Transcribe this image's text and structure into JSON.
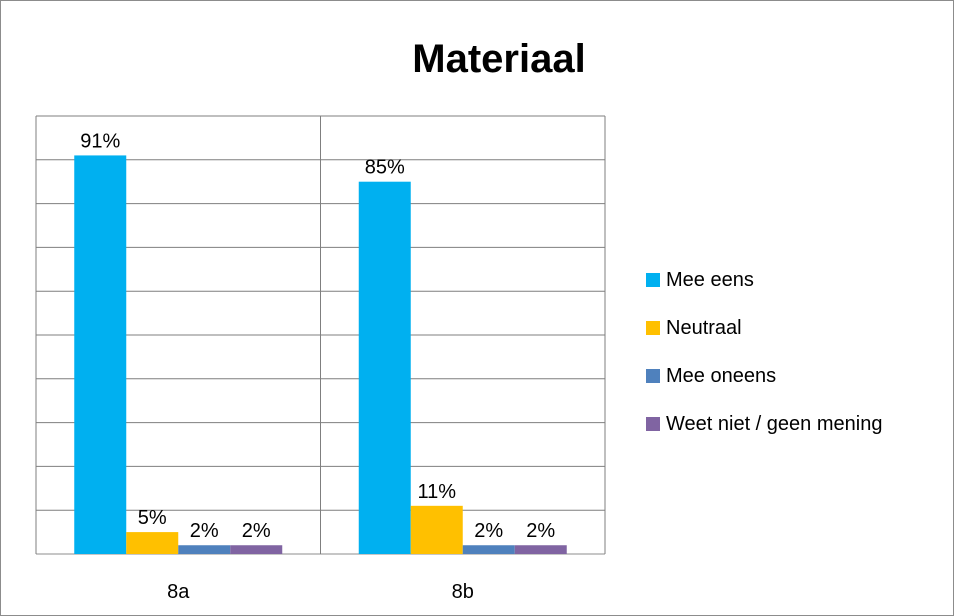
{
  "chart_data": {
    "type": "bar",
    "title": "Materiaal",
    "categories": [
      "8a",
      "8b"
    ],
    "ylim": [
      0,
      100
    ],
    "grid": true,
    "legend_position": "right",
    "series": [
      {
        "name": "Mee eens",
        "color": "#00b0f0",
        "values": [
          91,
          85
        ],
        "labels": [
          "91%",
          "85%"
        ]
      },
      {
        "name": "Neutraal",
        "color": "#ffc000",
        "values": [
          5,
          11
        ],
        "labels": [
          "5%",
          "11%"
        ]
      },
      {
        "name": "Mee oneens",
        "color": "#4f81bd",
        "values": [
          2,
          2
        ],
        "labels": [
          "2%",
          "2%"
        ]
      },
      {
        "name": "Weet niet / geen mening",
        "color": "#8064a2",
        "values": [
          2,
          2
        ],
        "labels": [
          "2%",
          "2%"
        ]
      }
    ]
  }
}
